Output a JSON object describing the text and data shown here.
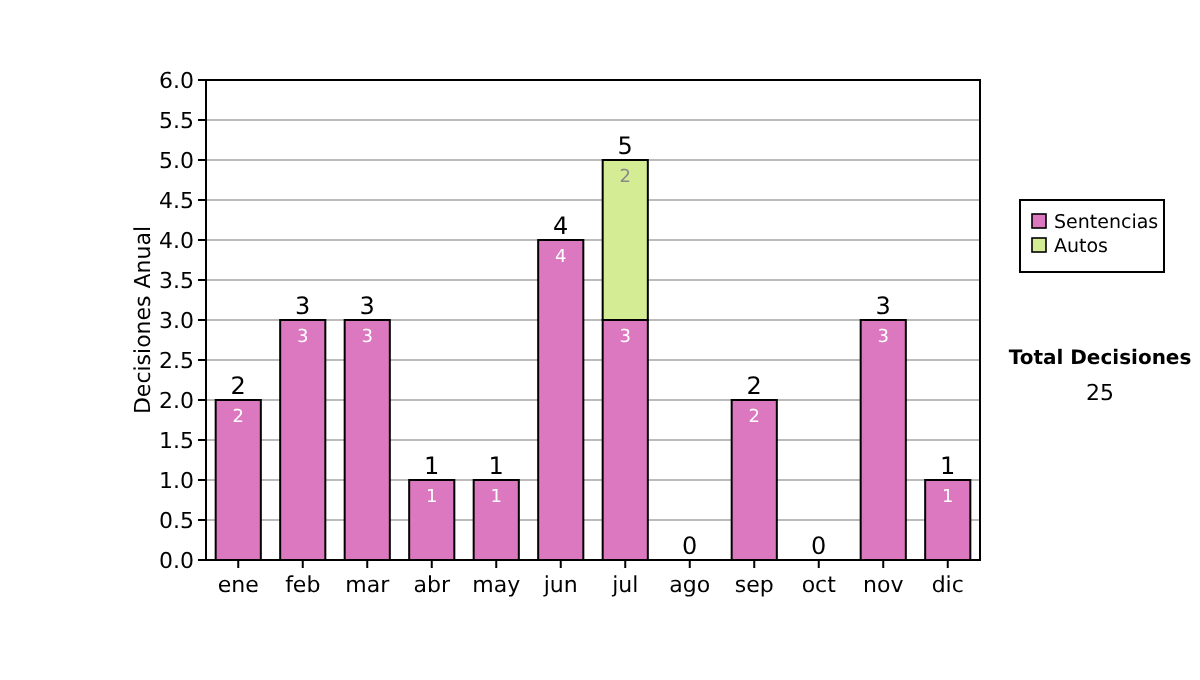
{
  "chart_data": {
    "type": "bar",
    "stacked": true,
    "ylabel": "Decisiones Anual",
    "categories": [
      "ene",
      "feb",
      "mar",
      "abr",
      "may",
      "jun",
      "jul",
      "ago",
      "sep",
      "oct",
      "nov",
      "dic"
    ],
    "series": [
      {
        "name": "Sentencias",
        "color": "#dc78c0",
        "values": [
          2,
          3,
          3,
          1,
          1,
          4,
          3,
          0,
          2,
          0,
          3,
          1
        ],
        "value_labels": [
          "2",
          "3",
          "3",
          "1",
          "1",
          "4",
          "3",
          null,
          "2",
          null,
          "3",
          "1"
        ]
      },
      {
        "name": "Autos",
        "color": "#d4ec94",
        "values": [
          null,
          null,
          null,
          null,
          null,
          null,
          2,
          null,
          null,
          null,
          null,
          null
        ],
        "value_labels": [
          null,
          null,
          null,
          null,
          null,
          null,
          "2",
          null,
          null,
          null,
          null,
          null
        ]
      }
    ],
    "totals": [
      "2",
      "3",
      "3",
      "1",
      "1",
      "4",
      "5",
      "0",
      "2",
      "0",
      "3",
      "1"
    ],
    "ylim": [
      0,
      6
    ],
    "yticks": [
      "0.0",
      "0.5",
      "1.0",
      "1.5",
      "2.0",
      "2.5",
      "3.0",
      "3.5",
      "4.0",
      "4.5",
      "5.0",
      "5.5",
      "6.0"
    ],
    "grid": "y",
    "legend": "right",
    "annotations": [
      "Total Decisiones",
      "25"
    ]
  }
}
